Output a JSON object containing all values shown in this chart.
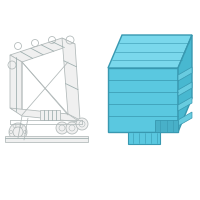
{
  "background_color": "#ffffff",
  "line_color": "#b0b8b8",
  "module_fill_front": "#5ac8e0",
  "module_fill_top": "#7ad8ec",
  "module_fill_right": "#48b8d0",
  "module_stroke": "#3898b0",
  "figsize": [
    2.0,
    2.0
  ],
  "dpi": 100
}
